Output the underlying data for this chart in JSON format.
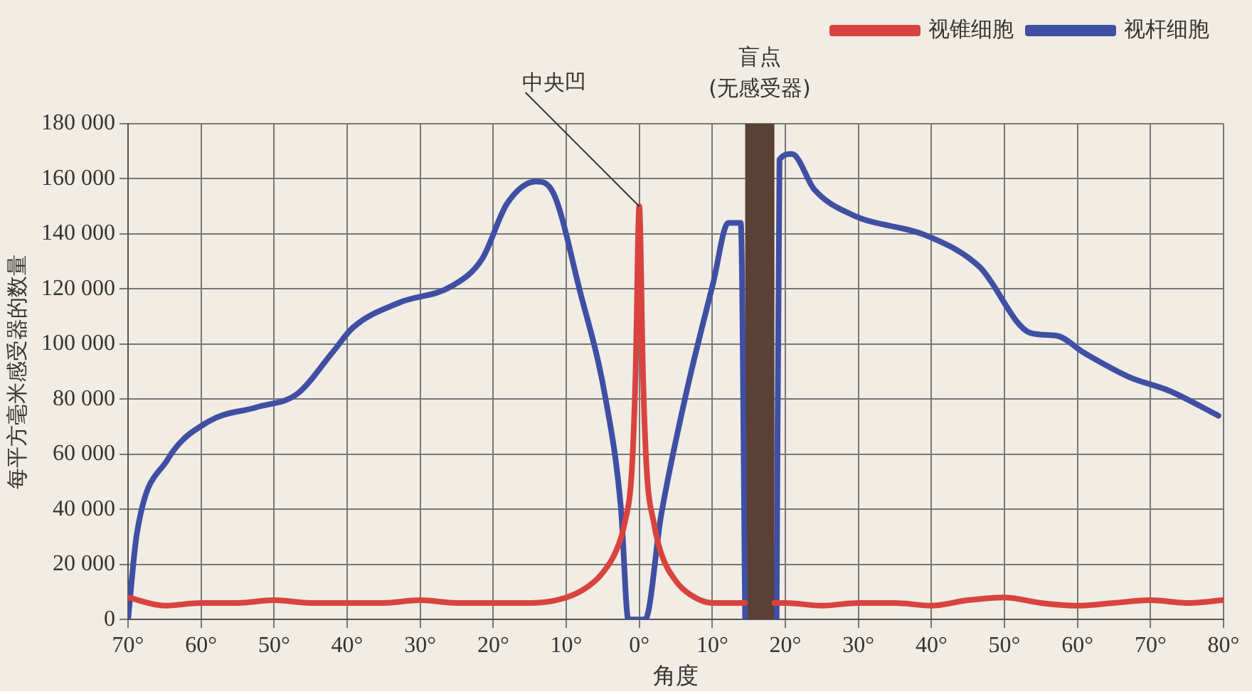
{
  "chart_data": {
    "type": "line",
    "xlabel": "角度",
    "ylabel": "每平方毫米感受器的数量",
    "xlim": [
      -70,
      80
    ],
    "xticks": [
      {
        "value": -70,
        "label": "70°"
      },
      {
        "value": -60,
        "label": "60°"
      },
      {
        "value": -50,
        "label": "50°"
      },
      {
        "value": -40,
        "label": "40°"
      },
      {
        "value": -30,
        "label": "30°"
      },
      {
        "value": -20,
        "label": "20°"
      },
      {
        "value": -10,
        "label": "10°"
      },
      {
        "value": 0,
        "label": "0°"
      },
      {
        "value": 10,
        "label": "10°"
      },
      {
        "value": 20,
        "label": "20°"
      },
      {
        "value": 30,
        "label": "30°"
      },
      {
        "value": 40,
        "label": "40°"
      },
      {
        "value": 50,
        "label": "50°"
      },
      {
        "value": 60,
        "label": "60°"
      },
      {
        "value": 70,
        "label": "70°"
      },
      {
        "value": 80,
        "label": "80°"
      }
    ],
    "ylim": [
      0,
      180000
    ],
    "yticks": [
      0,
      {
        "value": 20000,
        "label": "20 000"
      },
      {
        "value": 40000,
        "label": "40 000"
      },
      {
        "value": 60000,
        "label": "60 000"
      },
      {
        "value": 80000,
        "label": "80 000"
      },
      {
        "value": 100000,
        "label": "100 000"
      },
      {
        "value": 120000,
        "label": "120 000"
      },
      {
        "value": 140000,
        "label": "140 000"
      },
      {
        "value": 160000,
        "label": "160 000"
      },
      {
        "value": 180000,
        "label": "180 000"
      }
    ],
    "grid": true,
    "legend": "top right",
    "marker": "none",
    "line_style": "solid",
    "series": [
      {
        "name": "视锥细胞",
        "color": "#d9433f",
        "x": [
          -70,
          -65,
          -60,
          -55,
          -50,
          -45,
          -40,
          -35,
          -30,
          -25,
          -20,
          -15,
          -10,
          -7,
          -5,
          -3,
          -2,
          -1,
          -0.5,
          0,
          0.5,
          1,
          2,
          3,
          5,
          7,
          10,
          13,
          14.5,
          16,
          18.5,
          20,
          25,
          30,
          35,
          40,
          45,
          50,
          55,
          60,
          65,
          70,
          75,
          80
        ],
        "values": [
          8000,
          5000,
          6000,
          6000,
          7000,
          6000,
          6000,
          6000,
          7000,
          6000,
          6000,
          6000,
          8000,
          12000,
          17000,
          26000,
          35000,
          55000,
          90000,
          150000,
          90000,
          55000,
          35000,
          24000,
          14000,
          9000,
          6000,
          6000,
          6000,
          null,
          6000,
          6000,
          5000,
          6000,
          6000,
          5000,
          7000,
          8000,
          6000,
          5000,
          6000,
          7000,
          6000,
          7000
        ]
      },
      {
        "name": "视杆细胞",
        "color": "#3f4fa3",
        "x": [
          -70,
          -68.8,
          -64.6,
          -58.9,
          -52.5,
          -46.8,
          -42,
          -39.2,
          -32.9,
          -25.7,
          -21.5,
          -18.1,
          -14.1,
          -11.8,
          -8.2,
          -4.6,
          -2.5,
          -1.5,
          0.8,
          3,
          6.5,
          10.1,
          12.2,
          13.9,
          14.5,
          16,
          18.8,
          19.2,
          20.9,
          24,
          29.1,
          39.7,
          46.6,
          53.6,
          57.2,
          60.8,
          67.1,
          72.6,
          79.3
        ],
        "values": [
          0,
          31000,
          58000,
          72000,
          77000,
          82000,
          97000,
          106000,
          115000,
          121000,
          131000,
          151000,
          159000,
          155000,
          120000,
          80000,
          40000,
          0,
          0,
          38000,
          83000,
          122000,
          144000,
          144000,
          0,
          null,
          0,
          167000,
          169000,
          156000,
          147000,
          139000,
          128000,
          104000,
          103000,
          97000,
          88000,
          83000,
          74000
        ]
      }
    ],
    "bands": [
      {
        "axis": "x",
        "from": 14.5,
        "to": 18.5,
        "label": "盲点\n(无感受器)",
        "color": "#5a4035"
      }
    ],
    "annotations": [
      {
        "text": "中央凹",
        "x": 0,
        "y": 150000
      }
    ]
  }
}
